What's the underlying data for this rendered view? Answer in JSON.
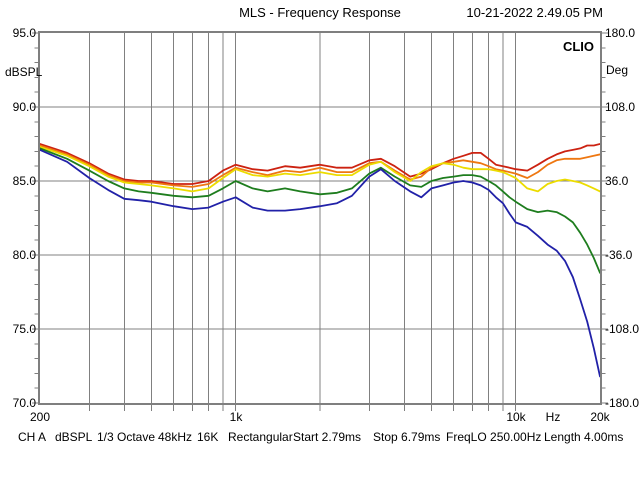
{
  "header": {
    "title": "MLS - Frequency Response",
    "datetime": "10-21-2022 2.49.05 PM"
  },
  "brand": "CLIO",
  "axis_labels": {
    "left_unit": "dBSPL",
    "right_unit": "Deg"
  },
  "statusbar": {
    "items": [
      "CH A",
      "dBSPL",
      "1/3 Octave",
      "48kHz",
      "16K",
      "Rectangular",
      "Start 2.79ms",
      "Stop 6.79ms",
      "FreqLO 250.00Hz",
      "Length 4.00ms"
    ]
  },
  "chart_data": {
    "type": "line",
    "title": "MLS - Frequency Response",
    "x_scale": "log",
    "x_range": [
      200,
      20000
    ],
    "x_gridlines": [
      300,
      400,
      500,
      600,
      700,
      800,
      900,
      1000,
      2000,
      3000,
      4000,
      5000,
      6000,
      7000,
      8000,
      9000,
      10000
    ],
    "x_tick_labels": [
      {
        "freq": 200,
        "label": "200"
      },
      {
        "freq": 1000,
        "label": "1k"
      },
      {
        "freq": 10000,
        "label": "10k"
      },
      {
        "freq": 13600,
        "label": "Hz"
      },
      {
        "freq": 20000,
        "label": "20k"
      }
    ],
    "y_left": {
      "label": "dBSPL",
      "range": [
        70,
        95
      ],
      "major": 5,
      "minor": 1,
      "tick_labels": [
        "95.0",
        "90.0",
        "85.0",
        "80.0",
        "75.0",
        "70.0"
      ]
    },
    "y_right": {
      "label": "Deg",
      "range": [
        -180,
        180
      ],
      "major": 72,
      "minor": 14.4,
      "tick_labels": [
        "180.0",
        "108.0",
        "36.0",
        "-36.0",
        "-108.0",
        "-180.0"
      ]
    },
    "grid_color": "#808080",
    "frequencies": [
      200,
      250,
      300,
      350,
      400,
      450,
      500,
      600,
      700,
      800,
      900,
      1000,
      1150,
      1300,
      1500,
      1700,
      2000,
      2300,
      2600,
      3000,
      3300,
      3700,
      4200,
      4600,
      5000,
      5500,
      6000,
      6500,
      7000,
      7500,
      8000,
      8500,
      9000,
      9500,
      10000,
      11000,
      12000,
      13000,
      14000,
      15000,
      16000,
      17000,
      18000,
      19000,
      20000
    ],
    "series": [
      {
        "name": "curve-red",
        "color": "#cc2211",
        "values": [
          87.5,
          86.9,
          86.2,
          85.5,
          85.1,
          85.0,
          85.0,
          84.8,
          84.8,
          85.0,
          85.7,
          86.1,
          85.8,
          85.7,
          86.0,
          85.9,
          86.1,
          85.9,
          85.9,
          86.4,
          86.5,
          86.0,
          85.3,
          85.5,
          85.8,
          86.2,
          86.5,
          86.7,
          86.9,
          86.9,
          86.5,
          86.1,
          86.0,
          85.9,
          85.8,
          85.7,
          86.1,
          86.5,
          86.8,
          87.0,
          87.1,
          87.2,
          87.4,
          87.4,
          87.5
        ]
      },
      {
        "name": "curve-orange",
        "color": "#ee7711",
        "values": [
          87.4,
          86.8,
          86.1,
          85.4,
          85.0,
          84.9,
          84.9,
          84.7,
          84.6,
          84.8,
          85.4,
          85.9,
          85.6,
          85.4,
          85.7,
          85.6,
          85.9,
          85.6,
          85.6,
          86.2,
          86.3,
          85.7,
          85.1,
          85.3,
          85.9,
          86.2,
          86.3,
          86.4,
          86.3,
          86.2,
          86.0,
          85.8,
          85.7,
          85.6,
          85.5,
          85.2,
          85.6,
          86.1,
          86.4,
          86.5,
          86.5,
          86.5,
          86.6,
          86.7,
          86.8
        ]
      },
      {
        "name": "curve-yellow",
        "color": "#ecdc00",
        "values": [
          87.3,
          86.7,
          86.0,
          85.3,
          84.9,
          84.8,
          84.7,
          84.5,
          84.3,
          84.5,
          85.2,
          85.8,
          85.4,
          85.3,
          85.5,
          85.4,
          85.6,
          85.4,
          85.4,
          86.1,
          86.3,
          85.6,
          85.0,
          85.6,
          86.0,
          86.2,
          86.1,
          85.9,
          85.8,
          85.8,
          85.8,
          85.7,
          85.6,
          85.4,
          85.2,
          84.5,
          84.3,
          84.8,
          85.0,
          85.1,
          85.0,
          84.9,
          84.7,
          84.5,
          84.3
        ]
      },
      {
        "name": "curve-green",
        "color": "#1e7d1e",
        "values": [
          87.2,
          86.5,
          85.7,
          85.0,
          84.5,
          84.3,
          84.2,
          84.0,
          83.9,
          84.0,
          84.5,
          85.0,
          84.5,
          84.3,
          84.5,
          84.3,
          84.1,
          84.2,
          84.5,
          85.5,
          85.9,
          85.3,
          84.7,
          84.6,
          85.0,
          85.2,
          85.3,
          85.4,
          85.4,
          85.3,
          85.0,
          84.7,
          84.3,
          83.9,
          83.6,
          83.1,
          82.9,
          83.0,
          82.9,
          82.6,
          82.2,
          81.5,
          80.7,
          79.8,
          78.8
        ]
      },
      {
        "name": "curve-blue",
        "color": "#2121a8",
        "values": [
          87.1,
          86.3,
          85.2,
          84.4,
          83.8,
          83.7,
          83.6,
          83.3,
          83.1,
          83.2,
          83.6,
          83.9,
          83.2,
          83.0,
          83.0,
          83.1,
          83.3,
          83.5,
          84.0,
          85.3,
          85.8,
          85.0,
          84.3,
          83.9,
          84.5,
          84.7,
          84.9,
          85.0,
          84.9,
          84.7,
          84.4,
          83.9,
          83.5,
          82.8,
          82.2,
          81.9,
          81.3,
          80.7,
          80.3,
          79.6,
          78.5,
          77.0,
          75.5,
          73.7,
          71.8
        ]
      }
    ]
  }
}
